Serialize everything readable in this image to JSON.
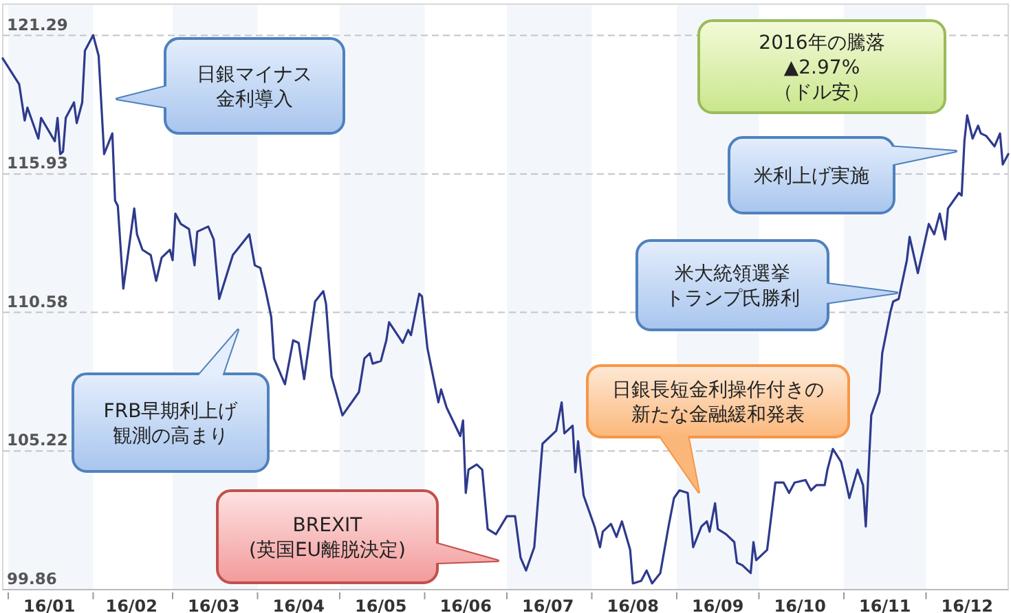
{
  "chart_data": {
    "type": "line",
    "x": [
      "2015-12-30",
      "2016-01-05",
      "2016-01-07",
      "2016-01-08",
      "2016-01-12",
      "2016-01-13",
      "2016-01-18",
      "2016-01-19",
      "2016-01-20",
      "2016-01-21",
      "2016-01-22",
      "2016-01-25",
      "2016-01-26",
      "2016-01-28",
      "2016-01-29",
      "2016-02-01",
      "2016-02-03",
      "2016-02-05",
      "2016-02-08",
      "2016-02-09",
      "2016-02-10",
      "2016-02-12",
      "2016-02-16",
      "2016-02-17",
      "2016-02-19",
      "2016-02-22",
      "2016-02-24",
      "2016-02-26",
      "2016-02-29",
      "2016-03-01",
      "2016-03-02",
      "2016-03-04",
      "2016-03-07",
      "2016-03-09",
      "2016-03-10",
      "2016-03-14",
      "2016-03-16",
      "2016-03-18",
      "2016-03-23",
      "2016-03-29",
      "2016-03-31",
      "2016-04-02",
      "2016-04-04",
      "2016-04-06",
      "2016-04-07",
      "2016-04-11",
      "2016-04-14",
      "2016-04-16",
      "2016-04-18",
      "2016-04-22",
      "2016-04-25",
      "2016-04-26",
      "2016-04-28",
      "2016-05-02",
      "2016-05-08",
      "2016-05-10",
      "2016-05-12",
      "2016-05-13",
      "2016-05-16",
      "2016-05-18",
      "2016-05-19",
      "2016-05-24",
      "2016-05-26",
      "2016-05-27",
      "2016-05-30",
      "2016-05-31",
      "2016-06-02",
      "2016-06-06",
      "2016-06-07",
      "2016-06-09",
      "2016-06-14",
      "2016-06-15",
      "2016-06-16",
      "2016-06-17",
      "2016-06-20",
      "2016-06-22",
      "2016-06-24",
      "2016-06-27",
      "2016-07-01",
      "2016-07-04",
      "2016-07-06",
      "2016-07-08",
      "2016-07-11",
      "2016-07-14",
      "2016-07-19",
      "2016-07-21",
      "2016-07-22",
      "2016-07-25",
      "2016-07-26",
      "2016-07-27",
      "2016-07-29",
      "2016-08-02",
      "2016-08-04",
      "2016-08-05",
      "2016-08-08",
      "2016-08-10",
      "2016-08-12",
      "2016-08-15",
      "2016-08-16",
      "2016-08-19",
      "2016-08-21",
      "2016-08-23",
      "2016-08-26",
      "2016-08-29",
      "2016-08-31",
      "2016-09-02",
      "2016-09-05",
      "2016-09-07",
      "2016-09-10",
      "2016-09-12",
      "2016-09-13",
      "2016-09-15",
      "2016-09-16",
      "2016-09-19",
      "2016-09-22",
      "2016-09-23",
      "2016-09-25",
      "2016-09-28",
      "2016-09-29",
      "2016-09-30",
      "2016-10-04",
      "2016-10-07",
      "2016-10-10",
      "2016-10-12",
      "2016-10-14",
      "2016-10-18",
      "2016-10-20",
      "2016-10-22",
      "2016-10-25",
      "2016-10-26",
      "2016-10-28",
      "2016-10-31",
      "2016-11-02",
      "2016-11-03",
      "2016-11-06",
      "2016-11-08",
      "2016-11-09",
      "2016-11-11",
      "2016-11-14",
      "2016-11-15",
      "2016-11-18",
      "2016-11-19",
      "2016-11-21",
      "2016-11-24",
      "2016-11-25",
      "2016-11-28",
      "2016-12-02",
      "2016-12-04",
      "2016-12-06",
      "2016-12-08",
      "2016-12-09",
      "2016-12-13",
      "2016-12-14",
      "2016-12-15",
      "2016-12-16",
      "2016-12-18",
      "2016-12-20",
      "2016-12-21",
      "2016-12-23",
      "2016-12-26",
      "2016-12-28",
      "2016-12-29",
      "2016-12-31"
    ],
    "series": [
      {
        "color": "#2e3a8c",
        "values": [
          120.4,
          119.4,
          118.0,
          118.5,
          117.3,
          118.1,
          117.2,
          118.1,
          116.7,
          116.8,
          118.1,
          118.7,
          117.9,
          118.7,
          120.7,
          121.3,
          120.5,
          116.7,
          117.5,
          114.9,
          114.7,
          111.5,
          114.6,
          113.6,
          113.0,
          112.8,
          111.8,
          112.7,
          113.0,
          112.6,
          114.4,
          114.0,
          113.8,
          112.4,
          113.7,
          113.9,
          113.4,
          111.1,
          112.8,
          113.6,
          112.4,
          112.3,
          111.4,
          110.4,
          108.8,
          107.8,
          109.5,
          109.4,
          108.0,
          111.0,
          111.4,
          110.9,
          108.1,
          106.6,
          107.5,
          108.8,
          109.0,
          108.6,
          108.7,
          109.5,
          110.2,
          109.4,
          109.9,
          109.7,
          111.3,
          111.2,
          109.2,
          107.1,
          107.6,
          106.9,
          105.8,
          106.4,
          103.6,
          104.5,
          104.7,
          104.5,
          102.2,
          102.0,
          102.7,
          102.7,
          101.1,
          100.6,
          101.5,
          105.5,
          106.0,
          107.1,
          105.9,
          106.2,
          104.4,
          105.6,
          103.5,
          102.3,
          101.5,
          102.1,
          102.4,
          101.9,
          102.5,
          101.4,
          100.1,
          100.2,
          100.6,
          100.1,
          100.5,
          102.3,
          103.4,
          103.7,
          103.6,
          101.5,
          102.3,
          102.5,
          102.1,
          103.2,
          102.2,
          102.0,
          101.7,
          100.9,
          100.8,
          100.5,
          101.7,
          101.0,
          101.4,
          104.0,
          104.0,
          103.6,
          104.0,
          104.1,
          103.7,
          103.9,
          103.9,
          104.5,
          105.3,
          104.8,
          103.9,
          103.4,
          104.5,
          103.9,
          102.3,
          106.6,
          107.5,
          109.0,
          110.6,
          111.0,
          111.1,
          112.6,
          113.5,
          112.1,
          114.0,
          113.6,
          114.4,
          113.4,
          114.6,
          115.2,
          115.1,
          117.2,
          118.2,
          117.3,
          117.8,
          117.5,
          117.4,
          117.0,
          117.5,
          116.3,
          116.7
        ]
      }
    ],
    "xlim": [
      "2015-12-30",
      "2016-12-31"
    ],
    "ylim": [
      99.86,
      122.5
    ],
    "yticks": [
      99.86,
      105.22,
      110.58,
      115.93,
      121.29
    ],
    "xticks": [
      {
        "value": "2016-01-01",
        "label": null
      },
      {
        "value": "2016-01-16",
        "label": "16/01"
      },
      {
        "value": "2016-02-01",
        "label": null
      },
      {
        "value": "2016-02-15",
        "label": "16/02"
      },
      {
        "value": "2016-03-01",
        "label": null
      },
      {
        "value": "2016-03-16",
        "label": "16/03"
      },
      {
        "value": "2016-04-01",
        "label": null
      },
      {
        "value": "2016-04-16",
        "label": "16/04"
      },
      {
        "value": "2016-05-01",
        "label": null
      },
      {
        "value": "2016-05-16",
        "label": "16/05"
      },
      {
        "value": "2016-06-01",
        "label": null
      },
      {
        "value": "2016-06-16",
        "label": "16/06"
      },
      {
        "value": "2016-07-01",
        "label": null
      },
      {
        "value": "2016-07-16",
        "label": "16/07"
      },
      {
        "value": "2016-08-01",
        "label": null
      },
      {
        "value": "2016-08-16",
        "label": "16/08"
      },
      {
        "value": "2016-09-01",
        "label": null
      },
      {
        "value": "2016-09-16",
        "label": "16/09"
      },
      {
        "value": "2016-10-01",
        "label": null
      },
      {
        "value": "2016-10-16",
        "label": "16/10"
      },
      {
        "value": "2016-11-01",
        "label": null
      },
      {
        "value": "2016-11-16",
        "label": "16/11"
      },
      {
        "value": "2016-12-01",
        "label": null
      },
      {
        "value": "2016-12-16",
        "label": "16/12"
      }
    ],
    "grid": "y",
    "bands": [
      {
        "axis": "x",
        "from": "2016-01-01",
        "to": "2016-02-01",
        "color": "#f3f7fc"
      },
      {
        "axis": "x",
        "from": "2016-03-01",
        "to": "2016-04-01",
        "color": "#f3f7fc"
      },
      {
        "axis": "x",
        "from": "2016-05-01",
        "to": "2016-06-01",
        "color": "#f3f7fc"
      },
      {
        "axis": "x",
        "from": "2016-07-01",
        "to": "2016-08-01",
        "color": "#f3f7fc"
      },
      {
        "axis": "x",
        "from": "2016-09-01",
        "to": "2016-10-01",
        "color": "#f3f7fc"
      },
      {
        "axis": "x",
        "from": "2016-11-01",
        "to": "2016-12-01",
        "color": "#f3f7fc"
      }
    ],
    "annotations": [
      "日銀マイナス金利導入",
      "FRB早期利上げ観測の高まり",
      "BREXIT\n(英国EU離脱決定)",
      "日銀長短金利操作付きの新たな金融緩和発表",
      "米大統領選挙トランプ氏勝利",
      "米利上げ実施",
      "2016年の騰落\n▲2.97%\n（ドル安）"
    ]
  }
}
